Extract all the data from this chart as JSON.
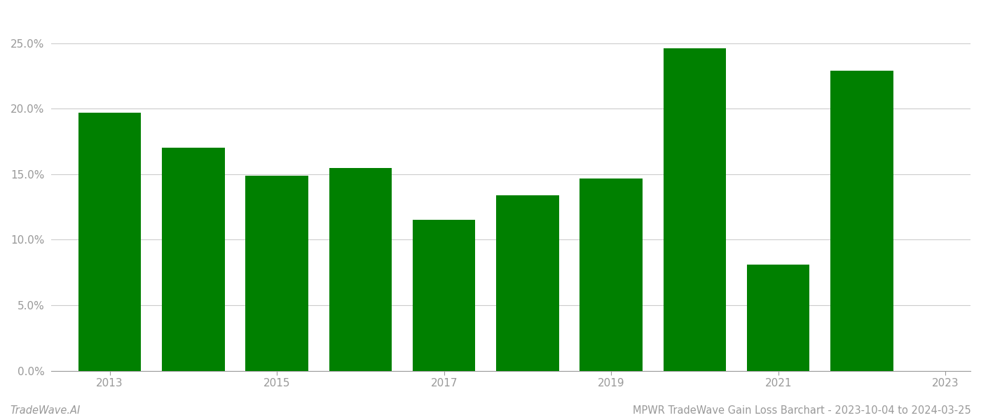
{
  "years": [
    2013,
    2014,
    2015,
    2016,
    2017,
    2018,
    2019,
    2020,
    2021,
    2022
  ],
  "values": [
    0.197,
    0.17,
    0.149,
    0.155,
    0.115,
    0.134,
    0.147,
    0.246,
    0.081,
    0.229
  ],
  "bar_color": "#008000",
  "title": "MPWR TradeWave Gain Loss Barchart - 2023-10-04 to 2024-03-25",
  "watermark": "TradeWave.AI",
  "ylim": [
    0,
    0.275
  ],
  "ytick_values": [
    0.0,
    0.05,
    0.1,
    0.15,
    0.2,
    0.25
  ],
  "xtick_positions": [
    2013,
    2015,
    2017,
    2019,
    2021,
    2023
  ],
  "xtick_labels": [
    "2013",
    "2015",
    "2017",
    "2019",
    "2021",
    "2023"
  ],
  "xlim": [
    2012.3,
    2023.3
  ],
  "background_color": "#ffffff",
  "grid_color": "#cccccc",
  "tick_color": "#999999",
  "title_fontsize": 10.5,
  "watermark_fontsize": 10.5,
  "axis_fontsize": 11,
  "bar_width": 0.75
}
